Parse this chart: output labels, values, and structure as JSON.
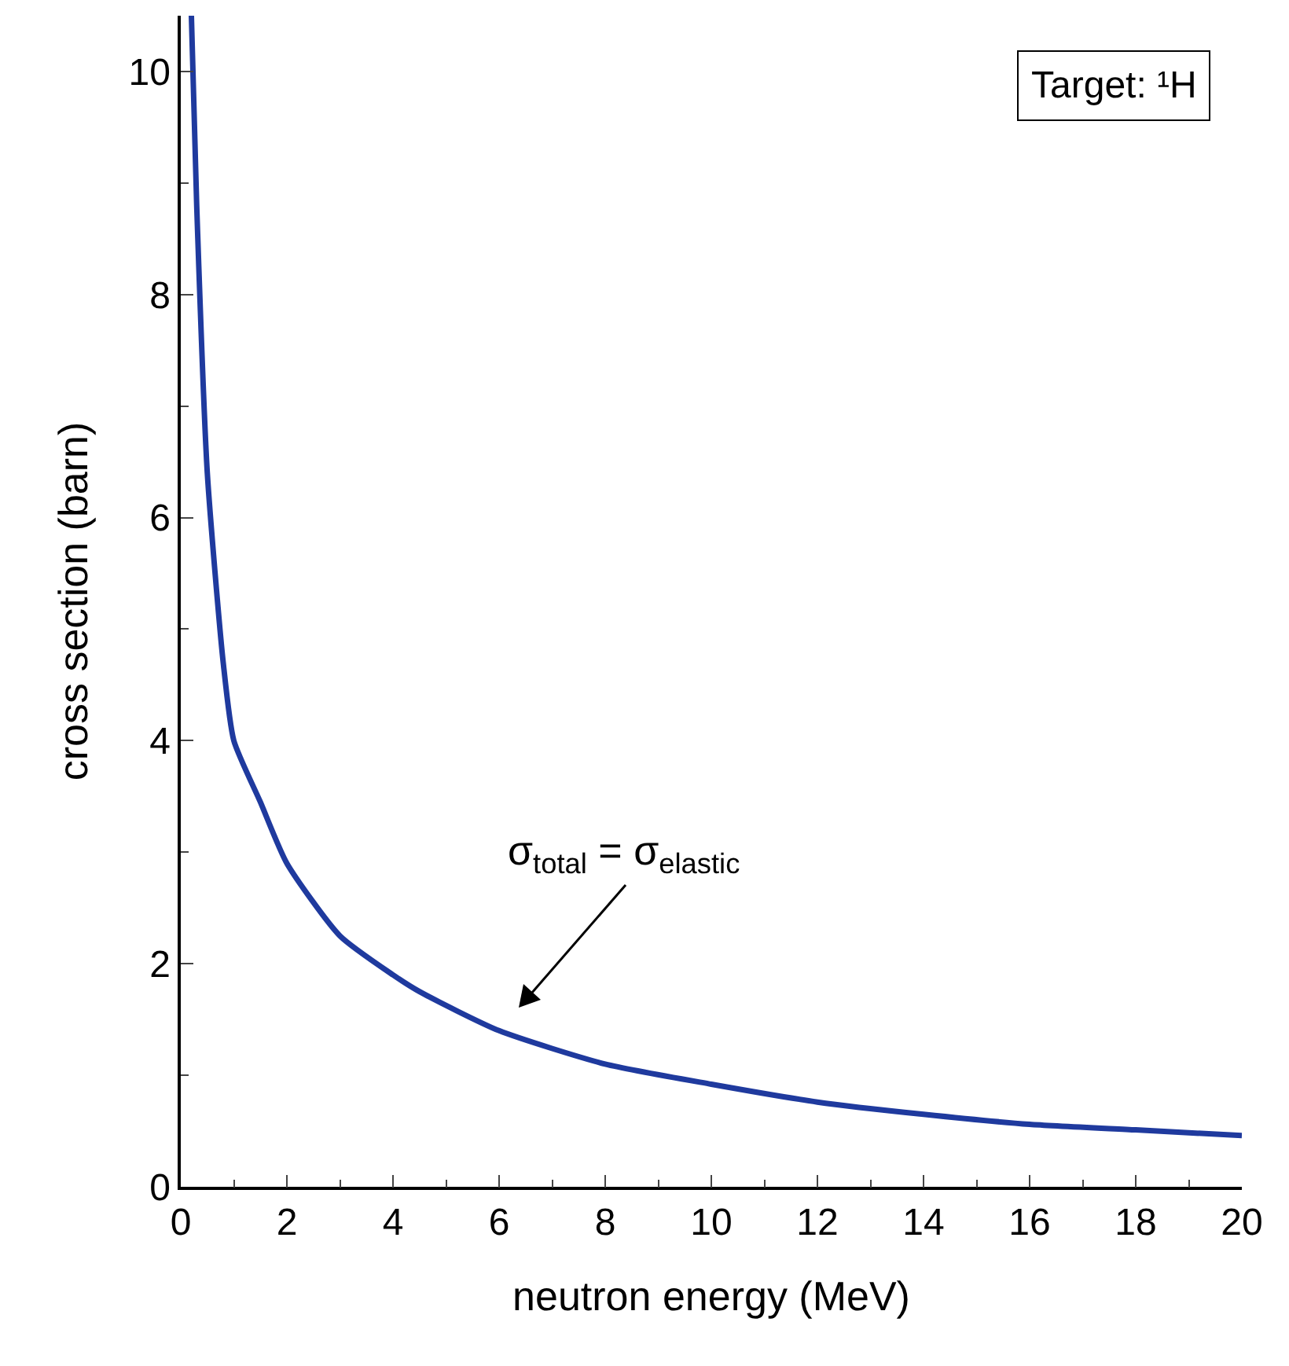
{
  "chart_data": {
    "type": "line",
    "xlabel": "neutron energy (MeV)",
    "ylabel": "cross section (barn)",
    "x": [
      0.2,
      0.3,
      0.5,
      0.8,
      1,
      1.5,
      2,
      3,
      4,
      4.5,
      6,
      8,
      10,
      12,
      14,
      16,
      18,
      20
    ],
    "series": [
      {
        "color": "#1f3a9e",
        "values": [
          10.5,
          8.8,
          6.4,
          4.7,
          4.0,
          3.45,
          2.9,
          2.25,
          1.9,
          1.75,
          1.4,
          1.1,
          0.92,
          0.76,
          0.65,
          0.56,
          0.51,
          0.46
        ]
      }
    ],
    "xlim": [
      0,
      20
    ],
    "xticks": [
      0,
      2,
      4,
      6,
      8,
      10,
      12,
      14,
      16,
      18,
      20
    ],
    "ylim": [
      0,
      10.5
    ],
    "yticks": [
      0,
      2,
      4,
      6,
      8,
      10
    ],
    "marker": "none",
    "line_style": "solid",
    "annotations": [
      "Target: ¹H",
      "σ$_{total}$ = σ$_{elastic}$"
    ]
  }
}
